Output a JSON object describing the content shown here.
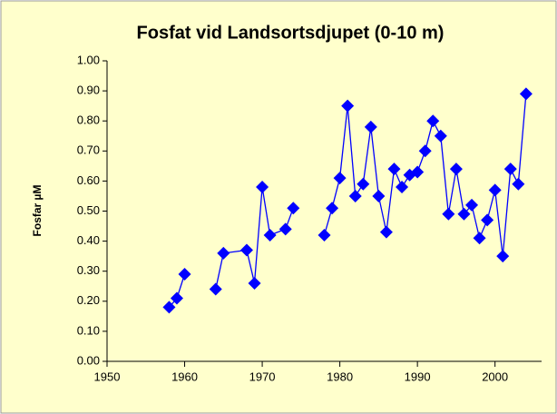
{
  "chart_data": {
    "type": "line",
    "title": "Fosfat vid Landsortsdjupet (0-10 m)",
    "y_label": "Fosfar µM",
    "x": [
      1958,
      1959,
      1960,
      1962,
      1964,
      1965,
      1968,
      1969,
      1970,
      1971,
      1973,
      1974,
      1976,
      1978,
      1979,
      1980,
      1981,
      1982,
      1983,
      1984,
      1985,
      1986,
      1987,
      1988,
      1989,
      1990,
      1991,
      1992,
      1993,
      1994,
      1995,
      1996,
      1997,
      1998,
      1999,
      2000,
      2001,
      2002,
      2003,
      2004
    ],
    "series": [
      {
        "name": "Fosfat",
        "color": "#0000ff",
        "values": [
          0.18,
          0.21,
          0.29,
          null,
          0.24,
          0.36,
          0.37,
          0.26,
          0.58,
          0.42,
          0.44,
          0.51,
          null,
          0.42,
          0.51,
          0.61,
          0.85,
          0.55,
          0.59,
          0.78,
          0.55,
          0.43,
          0.64,
          0.58,
          0.62,
          0.63,
          0.7,
          0.8,
          0.75,
          0.49,
          0.64,
          0.49,
          0.52,
          0.41,
          0.47,
          0.57,
          0.35,
          0.64,
          0.59,
          0.89
        ]
      }
    ],
    "xlim": [
      1950,
      2006
    ],
    "xticks": [
      1950,
      1960,
      1970,
      1980,
      1990,
      2000
    ],
    "ylim": [
      0,
      1
    ],
    "yticks": [
      {
        "value": 0,
        "label": "0.00"
      },
      {
        "value": 0.1,
        "label": "0.10"
      },
      {
        "value": 0.2,
        "label": "0.20"
      },
      {
        "value": 0.3,
        "label": "0.30"
      },
      {
        "value": 0.4,
        "label": "0.40"
      },
      {
        "value": 0.5,
        "label": "0.50"
      },
      {
        "value": 0.6,
        "label": "0.60"
      },
      {
        "value": 0.7,
        "label": "0.70"
      },
      {
        "value": 0.8,
        "label": "0.80"
      },
      {
        "value": 0.9,
        "label": "0.90"
      },
      {
        "value": 1,
        "label": "1.00"
      }
    ],
    "grid": false
  }
}
